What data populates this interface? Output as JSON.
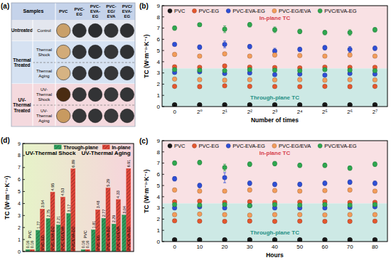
{
  "panel_a": {
    "label": "(a)",
    "header": "Samples",
    "columns": [
      "PVC",
      "PVC-EG",
      "PVC-EVA-EG",
      "PVC-EG/EVA",
      "PVC/EVA-EG"
    ],
    "groups": [
      {
        "name": "Untreated",
        "rows": [
          {
            "name": "Control",
            "colors": [
              "#c9a06a",
              "#2f3032",
              "#2c2d2f",
              "#323335",
              "#2e2f31"
            ]
          }
        ]
      },
      {
        "name": "Thermal Treated",
        "rows": [
          {
            "name": "Thermal Shock",
            "colors": [
              "#d2ab78",
              "#333436",
              "#2f3032",
              "#353638",
              "#303133"
            ]
          },
          {
            "name": "Thermal Aging",
            "colors": [
              "#d6b383",
              "#343537",
              "#303133",
              "#363739",
              "#323335"
            ]
          }
        ]
      },
      {
        "name": "UV-Thermal Treated",
        "rows": [
          {
            "name": "UV-Thermal Shock",
            "colors": [
              "#4a2c12",
              "#353638",
              "#323335",
              "#38393b",
              "#333436"
            ]
          },
          {
            "name": "UV-Thermal Aging",
            "colors": [
              "#c89a60",
              "#363739",
              "#333436",
              "#393a3c",
              "#343537"
            ]
          }
        ]
      }
    ]
  },
  "chart_data": [
    {
      "type": "scatter",
      "panel_label": "(b)",
      "x_label": "Number of times",
      "y_label": "TC (W·m⁻¹·K⁻¹)",
      "categories": [
        "0",
        "2⁰",
        "2¹",
        "2²",
        "2³",
        "2⁴",
        "2⁵",
        "2⁶",
        "2⁷"
      ],
      "ylim": [
        0,
        9
      ],
      "yticks": [
        0,
        1,
        2,
        3,
        4,
        5,
        6,
        7,
        8,
        9
      ],
      "legend": "top",
      "bands": [
        {
          "label": "In-plane TC",
          "from": 3.4,
          "to": 9,
          "color": "#f9e1e4"
        },
        {
          "label": "Through-plane TC",
          "from": 0,
          "to": 3.4,
          "color": "#cde9e5"
        }
      ],
      "series": [
        {
          "name": "PVC",
          "color": "#1a1a1a",
          "marker": "circle",
          "values": [
            0.16,
            0.16,
            0.16,
            0.16,
            0.16,
            0.16,
            0.16,
            0.16,
            0.16
          ],
          "errors": [
            0.02,
            0.02,
            0.02,
            0.02,
            0.02,
            0.02,
            0.02,
            0.02,
            0.02
          ],
          "through_plane_values": [
            0.14,
            0.14,
            0.14,
            0.14,
            0.14,
            0.14,
            0.14,
            0.14,
            0.14
          ],
          "through_plane_errors": [
            0.02,
            0.02,
            0.02,
            0.02,
            0.02,
            0.02,
            0.02,
            0.02,
            0.02
          ]
        },
        {
          "name": "PVC-EG",
          "color": "#e4572e",
          "marker": "circle",
          "values": [
            3.55,
            3.5,
            3.62,
            3.52,
            3.48,
            3.45,
            3.52,
            3.5,
            3.5
          ],
          "errors": [
            0.12,
            0.1,
            0.15,
            0.1,
            0.1,
            0.12,
            0.1,
            0.1,
            0.12
          ],
          "through_plane_values": [
            1.8,
            1.78,
            1.85,
            1.8,
            1.79,
            1.77,
            1.8,
            1.78,
            1.8
          ],
          "through_plane_errors": [
            0.08,
            0.08,
            0.08,
            0.08,
            0.08,
            0.08,
            0.08,
            0.08,
            0.08
          ]
        },
        {
          "name": "PVC-EVA-EG",
          "color": "#2f4fd6",
          "marker": "circle",
          "values": [
            5.55,
            5.3,
            5.55,
            5.35,
            4.95,
            5.1,
            5.25,
            5.1,
            5.2
          ],
          "errors": [
            0.15,
            0.2,
            0.3,
            0.2,
            0.25,
            0.2,
            0.2,
            0.25,
            0.2
          ],
          "through_plane_values": [
            3.05,
            3.1,
            2.95,
            3.0,
            2.85,
            2.9,
            2.8,
            2.95,
            2.9
          ],
          "through_plane_errors": [
            0.1,
            0.1,
            0.1,
            0.1,
            0.1,
            0.1,
            0.1,
            0.1,
            0.1
          ]
        },
        {
          "name": "PVC-EG/EVA",
          "color": "#f39c5a",
          "marker": "circle",
          "values": [
            4.65,
            4.5,
            4.7,
            4.5,
            4.6,
            4.55,
            4.5,
            4.6,
            4.5
          ],
          "errors": [
            0.15,
            0.15,
            0.15,
            0.15,
            0.15,
            0.15,
            0.15,
            0.15,
            0.15
          ],
          "through_plane_values": [
            2.45,
            2.4,
            2.35,
            2.4,
            2.38,
            2.4,
            2.35,
            2.4,
            2.38
          ],
          "through_plane_errors": [
            0.08,
            0.08,
            0.08,
            0.08,
            0.08,
            0.08,
            0.08,
            0.08,
            0.08
          ]
        },
        {
          "name": "PVC/EVA-EG",
          "color": "#2fa84f",
          "marker": "circle",
          "values": [
            7.0,
            7.3,
            6.9,
            7.3,
            6.85,
            6.7,
            6.6,
            6.6,
            6.85
          ],
          "errors": [
            0.2,
            0.15,
            0.3,
            0.2,
            0.25,
            0.2,
            0.2,
            0.25,
            0.2
          ],
          "through_plane_values": [
            3.3,
            3.25,
            3.2,
            3.3,
            3.25,
            3.2,
            3.3,
            3.25,
            3.2
          ],
          "through_plane_errors": [
            0.1,
            0.1,
            0.1,
            0.1,
            0.1,
            0.1,
            0.1,
            0.1,
            0.1
          ]
        }
      ]
    },
    {
      "type": "scatter",
      "panel_label": "(c)",
      "x_label": "Hours",
      "y_label": "TC (W·m⁻¹·K⁻¹)",
      "x": [
        0,
        10,
        20,
        30,
        40,
        50,
        60,
        70,
        80
      ],
      "xlim": [
        -5,
        85
      ],
      "xticks": [
        0,
        10,
        20,
        30,
        40,
        50,
        60,
        70,
        80
      ],
      "ylim": [
        0,
        9
      ],
      "yticks": [
        0,
        1,
        2,
        3,
        4,
        5,
        6,
        7,
        8,
        9
      ],
      "legend": "top",
      "bands": [
        {
          "label": "In-plane TC",
          "from": 3.4,
          "to": 9,
          "color": "#f9e1e4"
        },
        {
          "label": "Through-plane TC",
          "from": 0,
          "to": 3.4,
          "color": "#cde9e5"
        }
      ],
      "series": [
        {
          "name": "PVC",
          "color": "#1a1a1a",
          "marker": "circle",
          "values": [
            0.16,
            0.16,
            0.16,
            0.16,
            0.16,
            0.16,
            0.16,
            0.16,
            0.16
          ],
          "errors": [
            0.02,
            0.02,
            0.02,
            0.02,
            0.02,
            0.02,
            0.02,
            0.02,
            0.02
          ],
          "through_plane_values": [
            0.14,
            0.14,
            0.14,
            0.14,
            0.14,
            0.14,
            0.14,
            0.14,
            0.14
          ],
          "through_plane_errors": [
            0.02,
            0.02,
            0.02,
            0.02,
            0.02,
            0.02,
            0.02,
            0.02,
            0.02
          ]
        },
        {
          "name": "PVC-EG",
          "color": "#e4572e",
          "marker": "circle",
          "values": [
            3.55,
            3.6,
            3.5,
            3.55,
            3.5,
            3.52,
            3.55,
            3.48,
            3.5
          ],
          "errors": [
            0.1,
            0.1,
            0.12,
            0.1,
            0.1,
            0.1,
            0.1,
            0.1,
            0.1
          ],
          "through_plane_values": [
            1.85,
            1.82,
            1.8,
            1.83,
            1.8,
            1.82,
            1.8,
            1.8,
            1.82
          ],
          "through_plane_errors": [
            0.08,
            0.08,
            0.08,
            0.08,
            0.08,
            0.08,
            0.08,
            0.08,
            0.08
          ]
        },
        {
          "name": "PVC-EVA-EG",
          "color": "#2f4fd6",
          "marker": "circle",
          "values": [
            5.6,
            5.0,
            5.7,
            5.2,
            5.1,
            5.1,
            5.2,
            5.3,
            5.2
          ],
          "errors": [
            0.2,
            0.2,
            0.45,
            0.2,
            0.2,
            0.2,
            0.2,
            0.2,
            0.2
          ],
          "through_plane_values": [
            3.0,
            3.1,
            3.0,
            3.2,
            3.0,
            3.0,
            3.0,
            3.05,
            3.1
          ],
          "through_plane_errors": [
            0.1,
            0.1,
            0.1,
            0.1,
            0.1,
            0.1,
            0.1,
            0.1,
            0.1
          ]
        },
        {
          "name": "PVC-EG/EVA",
          "color": "#f39c5a",
          "marker": "circle",
          "values": [
            4.6,
            4.5,
            4.5,
            4.6,
            4.55,
            4.5,
            4.55,
            4.6,
            4.5
          ],
          "errors": [
            0.15,
            0.15,
            0.15,
            0.15,
            0.15,
            0.15,
            0.15,
            0.15,
            0.15
          ],
          "through_plane_values": [
            2.4,
            2.45,
            2.4,
            2.35,
            2.4,
            2.4,
            2.38,
            2.4,
            2.4
          ],
          "through_plane_errors": [
            0.08,
            0.08,
            0.08,
            0.08,
            0.08,
            0.08,
            0.08,
            0.08,
            0.08
          ]
        },
        {
          "name": "PVC/EVA-EG",
          "color": "#2fa84f",
          "marker": "circle",
          "values": [
            7.0,
            7.05,
            6.6,
            6.9,
            6.95,
            6.8,
            6.8,
            6.55,
            6.9
          ],
          "errors": [
            0.2,
            0.2,
            0.3,
            0.2,
            0.2,
            0.2,
            0.2,
            0.2,
            0.2
          ],
          "through_plane_values": [
            3.3,
            3.25,
            3.3,
            3.2,
            3.3,
            3.25,
            3.3,
            3.25,
            3.3
          ],
          "through_plane_errors": [
            0.1,
            0.1,
            0.1,
            0.1,
            0.1,
            0.1,
            0.1,
            0.1,
            0.1
          ]
        }
      ]
    },
    {
      "type": "bar",
      "panel_label": "(d)",
      "y_label": "TC (W·m⁻¹·K⁻¹)",
      "ylim": [
        0,
        9
      ],
      "yticks": [
        0,
        1,
        2,
        3,
        4,
        5,
        6,
        7,
        8,
        9
      ],
      "legend": "top-right",
      "data_labels": true,
      "tick_labels": "y",
      "groups": [
        {
          "title": "UV-Thermal Shock",
          "categories": [
            "PVC",
            "PVC-EG",
            "PVC-EVA-EG",
            "PVC-EG/EVA",
            "PVC/EVA-EG"
          ]
        },
        {
          "title": "UV-Thermal Aging",
          "categories": [
            "PVC",
            "PVC-EG",
            "PVC-EVA-EG",
            "PVC-EG/EVA",
            "PVC/EVA-EG"
          ]
        }
      ],
      "series": [
        {
          "name": "Through-plane",
          "color": "#2e9e5e",
          "values": [
            [
              0.16,
              1.77,
              2.75,
              2.21,
              3.17
            ],
            [
              0.16,
              1.81,
              2.77,
              2.29,
              3.04
            ]
          ]
        },
        {
          "name": "In-plane",
          "color": "#e0473a",
          "values": [
            [
              0.16,
              3.54,
              4.95,
              4.53,
              6.89
            ],
            [
              0.16,
              3.48,
              5.29,
              4.33,
              6.91
            ]
          ]
        }
      ]
    }
  ]
}
